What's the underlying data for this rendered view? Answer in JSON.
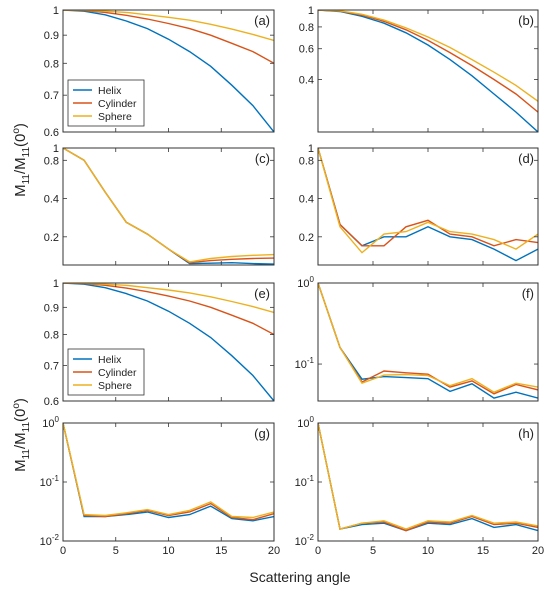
{
  "figure": {
    "ylabel_main": "M",
    "ylabel_sub1": "11",
    "ylabel_mid": "/M",
    "ylabel_sub2": "11",
    "ylabel_paren_open": "(0",
    "ylabel_sup": "o",
    "ylabel_paren_close": ")",
    "xlabel": "Scattering angle"
  },
  "colors": {
    "Helix": "#0072BD",
    "Cylinder": "#D95319",
    "Sphere": "#EDB120"
  },
  "chart_data": [
    {
      "id": "a",
      "panel_label": "(a)",
      "type": "line",
      "xlim": [
        0,
        20
      ],
      "ylim": [
        0.6,
        1
      ],
      "yscale": "log",
      "yticks": [
        1,
        0.9,
        0.8,
        0.7,
        0.6
      ],
      "ytick_labels": [
        "1",
        "0.9",
        "0.8",
        "0.7",
        "0.6"
      ],
      "xticks": [],
      "xtick_labels": [],
      "legend": [
        "Helix",
        "Cylinder",
        "Sphere"
      ],
      "legend_position": "lower-left",
      "series": [
        {
          "name": "Helix",
          "x": [
            0,
            2,
            4,
            6,
            8,
            10,
            12,
            14,
            16,
            18,
            20
          ],
          "values": [
            1,
            0.995,
            0.98,
            0.955,
            0.925,
            0.885,
            0.84,
            0.79,
            0.73,
            0.67,
            0.6
          ]
        },
        {
          "name": "Cylinder",
          "x": [
            0,
            2,
            4,
            6,
            8,
            10,
            12,
            14,
            16,
            18,
            20
          ],
          "values": [
            1,
            0.998,
            0.99,
            0.978,
            0.963,
            0.945,
            0.925,
            0.9,
            0.87,
            0.84,
            0.8
          ]
        },
        {
          "name": "Sphere",
          "x": [
            0,
            2,
            4,
            6,
            8,
            10,
            12,
            14,
            16,
            18,
            20
          ],
          "values": [
            1,
            0.999,
            0.995,
            0.99,
            0.98,
            0.97,
            0.958,
            0.942,
            0.923,
            0.903,
            0.88
          ]
        }
      ]
    },
    {
      "id": "b",
      "panel_label": "(b)",
      "type": "line",
      "xlim": [
        0,
        20
      ],
      "ylim": [
        0.2,
        1
      ],
      "yscale": "log",
      "yticks": [
        1,
        0.8,
        0.6,
        0.4
      ],
      "ytick_labels": [
        "1",
        "0.8",
        "0.6",
        "0.4"
      ],
      "xticks": [],
      "xtick_labels": [],
      "series": [
        {
          "name": "Helix",
          "x": [
            0,
            2,
            4,
            6,
            8,
            10,
            12,
            14,
            16,
            18,
            20
          ],
          "values": [
            1,
            0.98,
            0.92,
            0.84,
            0.74,
            0.63,
            0.52,
            0.42,
            0.33,
            0.26,
            0.2
          ]
        },
        {
          "name": "Cylinder",
          "x": [
            0,
            2,
            4,
            6,
            8,
            10,
            12,
            14,
            16,
            18,
            20
          ],
          "values": [
            1,
            0.985,
            0.935,
            0.86,
            0.77,
            0.67,
            0.57,
            0.48,
            0.4,
            0.33,
            0.26
          ]
        },
        {
          "name": "Sphere",
          "x": [
            0,
            2,
            4,
            6,
            8,
            10,
            12,
            14,
            16,
            18,
            20
          ],
          "values": [
            1,
            0.99,
            0.945,
            0.875,
            0.79,
            0.7,
            0.61,
            0.52,
            0.44,
            0.37,
            0.3
          ]
        }
      ]
    },
    {
      "id": "c",
      "panel_label": "(c)",
      "type": "line",
      "xlim": [
        0,
        20
      ],
      "ylim": [
        0.12,
        1
      ],
      "yscale": "log",
      "yticks": [
        1,
        0.8,
        0.4,
        0.2
      ],
      "ytick_labels": [
        "1",
        "0.8",
        "0.4",
        "0.2"
      ],
      "xticks": [],
      "xtick_labels": [],
      "series": [
        {
          "name": "Helix",
          "x": [
            0,
            2,
            4,
            6,
            8,
            10,
            12,
            14,
            16,
            18,
            20
          ],
          "values": [
            1,
            0.8,
            0.45,
            0.26,
            0.21,
            0.16,
            0.123,
            0.124,
            0.125,
            0.123,
            0.122
          ]
        },
        {
          "name": "Cylinder",
          "x": [
            0,
            2,
            4,
            6,
            8,
            10,
            12,
            14,
            16,
            18,
            20
          ],
          "values": [
            1,
            0.8,
            0.45,
            0.26,
            0.21,
            0.16,
            0.125,
            0.13,
            0.133,
            0.135,
            0.136
          ]
        },
        {
          "name": "Sphere",
          "x": [
            0,
            2,
            4,
            6,
            8,
            10,
            12,
            14,
            16,
            18,
            20
          ],
          "values": [
            1,
            0.8,
            0.45,
            0.26,
            0.21,
            0.16,
            0.127,
            0.135,
            0.14,
            0.143,
            0.145
          ]
        }
      ]
    },
    {
      "id": "d",
      "panel_label": "(d)",
      "type": "line",
      "xlim": [
        0,
        20
      ],
      "ylim": [
        0.12,
        1
      ],
      "yscale": "log",
      "yticks": [
        1,
        0.8,
        0.4,
        0.2
      ],
      "ytick_labels": [
        "1",
        "0.8",
        "0.4",
        "0.2"
      ],
      "xticks": [],
      "xtick_labels": [],
      "series": [
        {
          "name": "Helix",
          "x": [
            0,
            2,
            4,
            6,
            8,
            10,
            12,
            14,
            16,
            18,
            20
          ],
          "values": [
            1,
            0.25,
            0.17,
            0.2,
            0.2,
            0.24,
            0.2,
            0.19,
            0.16,
            0.13,
            0.16
          ]
        },
        {
          "name": "Cylinder",
          "x": [
            0,
            2,
            4,
            6,
            8,
            10,
            12,
            14,
            16,
            18,
            20
          ],
          "values": [
            1,
            0.25,
            0.17,
            0.17,
            0.24,
            0.27,
            0.21,
            0.2,
            0.17,
            0.19,
            0.18
          ]
        },
        {
          "name": "Sphere",
          "x": [
            0,
            2,
            4,
            6,
            8,
            10,
            12,
            14,
            16,
            18,
            20
          ],
          "values": [
            1,
            0.24,
            0.15,
            0.21,
            0.22,
            0.26,
            0.22,
            0.21,
            0.19,
            0.16,
            0.21
          ]
        }
      ]
    },
    {
      "id": "e",
      "panel_label": "(e)",
      "type": "line",
      "xlim": [
        0,
        20
      ],
      "ylim": [
        0.6,
        1
      ],
      "yscale": "log",
      "yticks": [
        1,
        0.9,
        0.8,
        0.7,
        0.6
      ],
      "ytick_labels": [
        "1",
        "0.9",
        "0.8",
        "0.7",
        "0.6"
      ],
      "xticks": [],
      "xtick_labels": [],
      "legend": [
        "Helix",
        "Cylinder",
        "Sphere"
      ],
      "legend_position": "lower-left",
      "series": [
        {
          "name": "Helix",
          "x": [
            0,
            2,
            4,
            6,
            8,
            10,
            12,
            14,
            16,
            18,
            20
          ],
          "values": [
            1,
            0.995,
            0.98,
            0.955,
            0.925,
            0.885,
            0.84,
            0.79,
            0.73,
            0.67,
            0.6
          ]
        },
        {
          "name": "Cylinder",
          "x": [
            0,
            2,
            4,
            6,
            8,
            10,
            12,
            14,
            16,
            18,
            20
          ],
          "values": [
            1,
            0.998,
            0.99,
            0.978,
            0.963,
            0.945,
            0.925,
            0.9,
            0.87,
            0.84,
            0.8
          ]
        },
        {
          "name": "Sphere",
          "x": [
            0,
            2,
            4,
            6,
            8,
            10,
            12,
            14,
            16,
            18,
            20
          ],
          "values": [
            1,
            0.999,
            0.995,
            0.99,
            0.98,
            0.97,
            0.958,
            0.942,
            0.923,
            0.903,
            0.88
          ]
        }
      ]
    },
    {
      "id": "f",
      "panel_label": "(f)",
      "type": "line",
      "xlim": [
        0,
        20
      ],
      "ylim": [
        0.035,
        1
      ],
      "yscale": "log",
      "yticks": [
        1,
        0.1
      ],
      "ytick_labels": [
        "10^0",
        "10^-1"
      ],
      "xticks": [],
      "xtick_labels": [],
      "series": [
        {
          "name": "Helix",
          "x": [
            0,
            2,
            4,
            6,
            8,
            10,
            12,
            14,
            16,
            18,
            20
          ],
          "values": [
            1,
            0.16,
            0.065,
            0.07,
            0.068,
            0.066,
            0.046,
            0.057,
            0.038,
            0.045,
            0.038
          ]
        },
        {
          "name": "Cylinder",
          "x": [
            0,
            2,
            4,
            6,
            8,
            10,
            12,
            14,
            16,
            18,
            20
          ],
          "values": [
            1,
            0.16,
            0.06,
            0.082,
            0.078,
            0.075,
            0.052,
            0.062,
            0.043,
            0.056,
            0.048
          ]
        },
        {
          "name": "Sphere",
          "x": [
            0,
            2,
            4,
            6,
            8,
            10,
            12,
            14,
            16,
            18,
            20
          ],
          "values": [
            1,
            0.16,
            0.058,
            0.073,
            0.074,
            0.072,
            0.054,
            0.066,
            0.045,
            0.058,
            0.052
          ]
        }
      ]
    },
    {
      "id": "g",
      "panel_label": "(g)",
      "type": "line",
      "xlim": [
        0,
        20
      ],
      "ylim": [
        0.01,
        1
      ],
      "yscale": "log",
      "yticks": [
        1,
        0.1,
        0.01
      ],
      "ytick_labels": [
        "10^0",
        "10^-1",
        "10^-2"
      ],
      "xticks": [
        0,
        5,
        10,
        15,
        20
      ],
      "xtick_labels": [
        "0",
        "5",
        "10",
        "15",
        "20"
      ],
      "series": [
        {
          "name": "Helix",
          "x": [
            0,
            2,
            4,
            6,
            8,
            10,
            12,
            14,
            16,
            18,
            20
          ],
          "values": [
            1,
            0.026,
            0.026,
            0.028,
            0.031,
            0.025,
            0.028,
            0.039,
            0.024,
            0.022,
            0.026
          ]
        },
        {
          "name": "Cylinder",
          "x": [
            0,
            2,
            4,
            6,
            8,
            10,
            12,
            14,
            16,
            18,
            20
          ],
          "values": [
            1,
            0.027,
            0.026,
            0.029,
            0.033,
            0.027,
            0.031,
            0.043,
            0.025,
            0.023,
            0.029
          ]
        },
        {
          "name": "Sphere",
          "x": [
            0,
            2,
            4,
            6,
            8,
            10,
            12,
            14,
            16,
            18,
            20
          ],
          "values": [
            1,
            0.028,
            0.027,
            0.03,
            0.034,
            0.028,
            0.033,
            0.046,
            0.026,
            0.025,
            0.031
          ]
        }
      ]
    },
    {
      "id": "h",
      "panel_label": "(h)",
      "type": "line",
      "xlim": [
        0,
        20
      ],
      "ylim": [
        0.01,
        1
      ],
      "yscale": "log",
      "yticks": [
        1,
        0.1,
        0.01
      ],
      "ytick_labels": [
        "10^0",
        "10^-1",
        "10^-2"
      ],
      "xticks": [
        0,
        5,
        10,
        15,
        20
      ],
      "xtick_labels": [
        "0",
        "5",
        "10",
        "15",
        "20"
      ],
      "series": [
        {
          "name": "Helix",
          "x": [
            0,
            2,
            4,
            6,
            8,
            10,
            12,
            14,
            16,
            18,
            20
          ],
          "values": [
            1,
            0.016,
            0.019,
            0.02,
            0.015,
            0.02,
            0.019,
            0.024,
            0.017,
            0.019,
            0.015
          ]
        },
        {
          "name": "Cylinder",
          "x": [
            0,
            2,
            4,
            6,
            8,
            10,
            12,
            14,
            16,
            18,
            20
          ],
          "values": [
            1,
            0.016,
            0.02,
            0.021,
            0.015,
            0.021,
            0.02,
            0.026,
            0.019,
            0.02,
            0.017
          ]
        },
        {
          "name": "Sphere",
          "x": [
            0,
            2,
            4,
            6,
            8,
            10,
            12,
            14,
            16,
            18,
            20
          ],
          "values": [
            1,
            0.016,
            0.02,
            0.022,
            0.016,
            0.022,
            0.021,
            0.027,
            0.02,
            0.021,
            0.018
          ]
        }
      ]
    }
  ]
}
